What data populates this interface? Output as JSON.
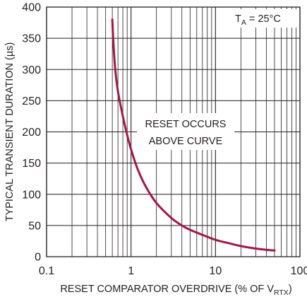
{
  "chart_data": {
    "type": "line",
    "xscale": "log",
    "xlim": [
      0.1,
      100
    ],
    "ylim": [
      0,
      400
    ],
    "x_ticks": [
      0.1,
      1,
      10,
      100
    ],
    "x_tick_labels": [
      "0.1",
      "1",
      "10",
      "100"
    ],
    "y_ticks": [
      0,
      50,
      100,
      150,
      200,
      250,
      300,
      350,
      400
    ],
    "y_tick_labels": [
      "0",
      "50",
      "100",
      "150",
      "200",
      "250",
      "300",
      "350",
      "400"
    ],
    "ylabel": "TYPICAL TRANSIENT DURATION (µs)",
    "xlabel_main": "RESET COMPARATOR OVERDRIVE (% OF V",
    "xlabel_sub": "RTX",
    "xlabel_end": ")",
    "grid": true,
    "annotations": {
      "temp_main": "T",
      "temp_sub": "A",
      "temp_value": " = 25°C",
      "region_line1": "RESET OCCURS",
      "region_line2": "ABOVE CURVE"
    },
    "series": [
      {
        "color": "#a3174a",
        "x": [
          0.6,
          0.62,
          0.65,
          0.7,
          0.8,
          0.9,
          1.0,
          1.2,
          1.5,
          2,
          3,
          4,
          5,
          7,
          10,
          15,
          20,
          30,
          40,
          50
        ],
        "y": [
          380,
          340,
          300,
          265,
          225,
          195,
          172,
          140,
          112,
          86,
          62,
          50,
          43,
          35,
          27,
          21,
          17,
          13,
          11,
          10
        ]
      }
    ]
  }
}
